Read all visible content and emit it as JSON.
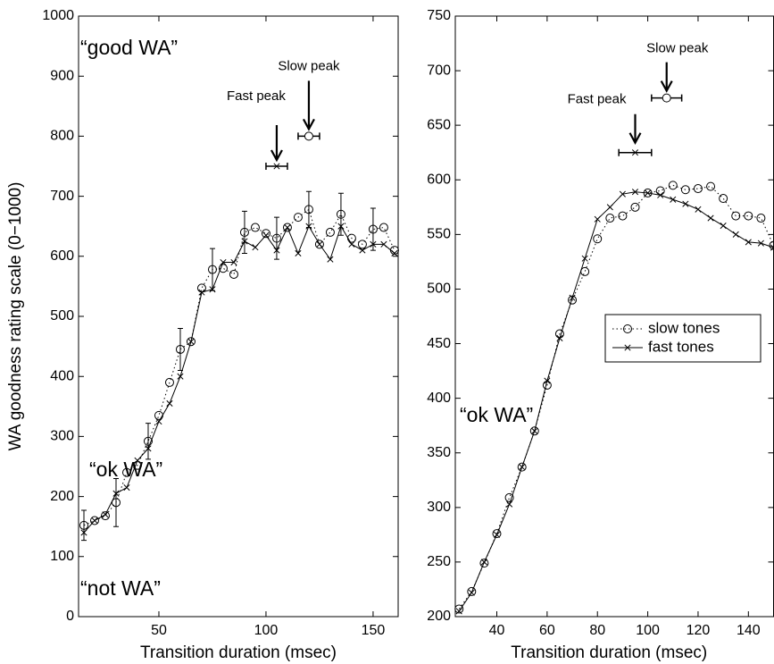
{
  "chart_data": [
    {
      "type": "line",
      "ylabel": "WA goodness rating scale (0−1000)",
      "xlabel": "Transition duration (msec)",
      "xlim": [
        12.5,
        161.7
      ],
      "ylim": [
        0,
        1000
      ],
      "xticks": [
        50,
        100,
        150
      ],
      "yticks": [
        0,
        100,
        200,
        300,
        400,
        500,
        600,
        700,
        800,
        900,
        1000
      ],
      "x": [
        15,
        20,
        25,
        30,
        35,
        40,
        45,
        50,
        55,
        60,
        65,
        70,
        75,
        80,
        85,
        90,
        95,
        100,
        105,
        110,
        115,
        120,
        125,
        130,
        135,
        140,
        145,
        150,
        155,
        160
      ],
      "series": [
        {
          "color": "#000000",
          "linestyle": "dotted",
          "marker": "o",
          "values": [
            152,
            160,
            168,
            190,
            240,
            252,
            292,
            335,
            390,
            445,
            458,
            547,
            578,
            580,
            570,
            640,
            648,
            638,
            630,
            648,
            665,
            678,
            620,
            640,
            670,
            630,
            620,
            645,
            648,
            610
          ],
          "errors": [
            25,
            null,
            null,
            40,
            null,
            null,
            30,
            null,
            null,
            35,
            null,
            null,
            35,
            null,
            null,
            35,
            null,
            null,
            35,
            null,
            null,
            30,
            null,
            null,
            35,
            null,
            null,
            35,
            null,
            null
          ]
        },
        {
          "color": "#000000",
          "linestyle": "solid",
          "marker": "x",
          "values": [
            140,
            160,
            170,
            205,
            215,
            260,
            280,
            325,
            355,
            400,
            458,
            540,
            545,
            590,
            590,
            625,
            615,
            635,
            610,
            648,
            605,
            650,
            620,
            595,
            650,
            620,
            610,
            620,
            620,
            605
          ]
        }
      ],
      "annotations": [
        "“good WA”",
        "“ok WA”",
        "“not WA”"
      ],
      "peaks": [
        {
          "label": "Slow peak",
          "x": 120,
          "y": 800,
          "xerr": 5,
          "marker": "o"
        },
        {
          "label": "Fast peak",
          "x": 105,
          "y": 750,
          "xerr": 5,
          "marker": "x"
        }
      ]
    },
    {
      "type": "line",
      "xlabel": "Transition duration (msec)",
      "xlim": [
        23.5,
        150
      ],
      "ylim": [
        200,
        750
      ],
      "xticks": [
        40,
        60,
        80,
        100,
        120,
        140
      ],
      "yticks": [
        200,
        250,
        300,
        350,
        400,
        450,
        500,
        550,
        600,
        650,
        700,
        750
      ],
      "legend": "center right",
      "x": [
        25,
        30,
        35,
        40,
        45,
        50,
        55,
        60,
        65,
        70,
        75,
        80,
        85,
        90,
        95,
        100,
        105,
        110,
        115,
        120,
        125,
        130,
        135,
        140,
        145,
        150
      ],
      "series": [
        {
          "name": "slow tones",
          "color": "#000000",
          "linestyle": "dotted",
          "marker": "o",
          "values": [
            207,
            223,
            249,
            276,
            309,
            337,
            370,
            412,
            459,
            490,
            516,
            546,
            565,
            567,
            575,
            588,
            590,
            595,
            591,
            592,
            594,
            583,
            567,
            567,
            565,
            540
          ]
        },
        {
          "name": "fast tones",
          "color": "#000000",
          "linestyle": "solid",
          "marker": "x",
          "values": [
            205,
            222,
            250,
            275,
            303,
            337,
            370,
            416,
            455,
            492,
            528,
            564,
            575,
            587,
            589,
            588,
            586,
            582,
            578,
            573,
            565,
            558,
            550,
            543,
            542,
            538
          ]
        }
      ],
      "annotations": [
        "“ok WA”"
      ],
      "peaks": [
        {
          "label": "Slow peak",
          "x": 107.5,
          "y": 675,
          "xerr": 6,
          "marker": "o"
        },
        {
          "label": "Fast peak",
          "x": 95,
          "y": 625,
          "xerr": 6.5,
          "marker": "x"
        }
      ]
    }
  ]
}
